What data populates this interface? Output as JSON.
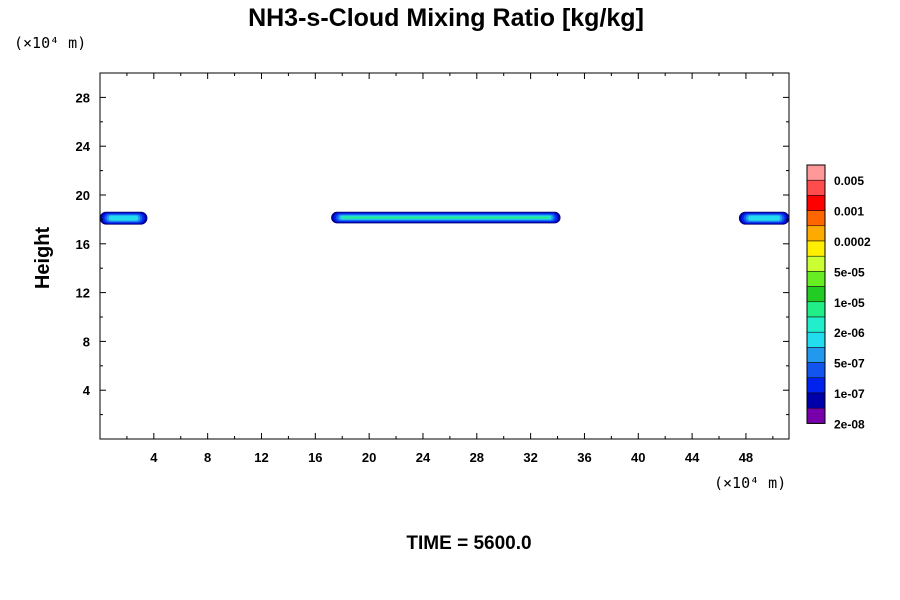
{
  "chart_data": {
    "type": "contour",
    "title": "NH3-s-Cloud Mixing Ratio [kg/kg]",
    "ylabel": "Height",
    "x_unit_label": "(×10⁴ m)",
    "y_unit_label": "(×10⁴ m)",
    "time_label": "TIME = 5600.0",
    "xlim": [
      0,
      51.2
    ],
    "ylim": [
      0,
      30
    ],
    "x_ticks": [
      "4",
      "8",
      "12",
      "16",
      "20",
      "24",
      "28",
      "32",
      "36",
      "40",
      "44",
      "48"
    ],
    "y_ticks": [
      "4",
      "8",
      "12",
      "16",
      "20",
      "24",
      "28"
    ],
    "colorbar": {
      "labels": [
        "0.005",
        "0.001",
        "0.0002",
        "5e-05",
        "1e-05",
        "2e-06",
        "5e-07",
        "1e-07",
        "2e-08"
      ],
      "colors": [
        "#ff9999",
        "#ff4d4d",
        "#ff0000",
        "#ff6600",
        "#ffaa00",
        "#ffee00",
        "#ccff33",
        "#66ee22",
        "#22cc22",
        "#22ee88",
        "#22eecc",
        "#22ddee",
        "#2299ee",
        "#1155ee",
        "#0022ee",
        "#0000aa",
        "#7700aa"
      ]
    },
    "cloud_layers": [
      {
        "x_start": 0,
        "x_end": 3.5,
        "y_bottom": 17.6,
        "y_top": 18.6,
        "max_level": "5e-07"
      },
      {
        "x_start": 17.2,
        "x_end": 34.2,
        "y_bottom": 17.7,
        "y_top": 18.6,
        "max_level": "2e-06"
      },
      {
        "x_start": 47.5,
        "x_end": 51.2,
        "y_bottom": 17.6,
        "y_top": 18.6,
        "max_level": "5e-07"
      }
    ]
  }
}
